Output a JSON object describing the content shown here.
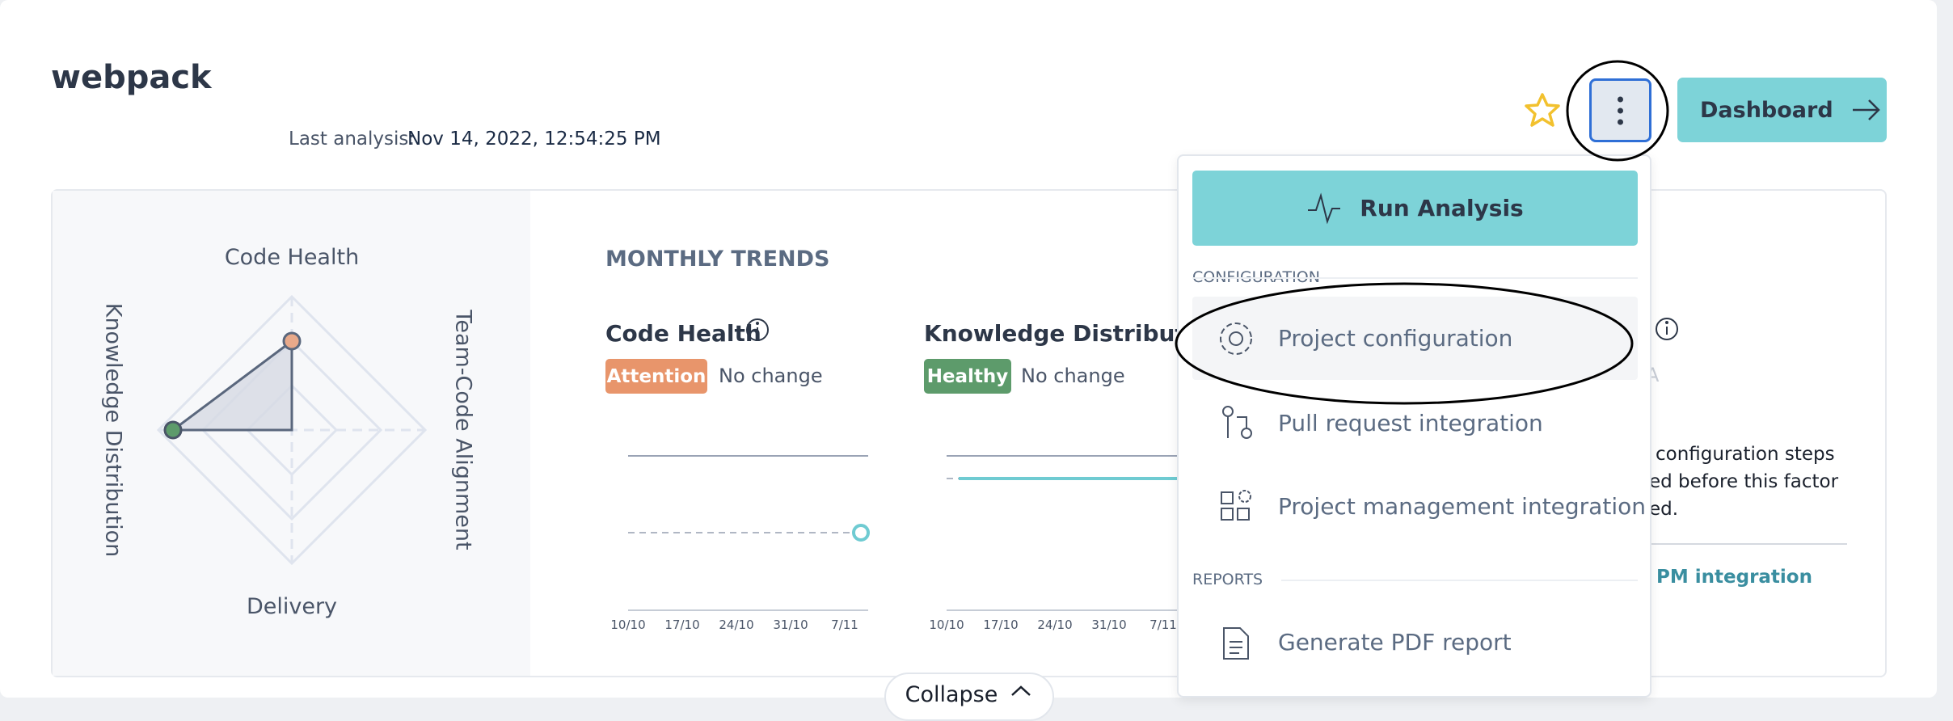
{
  "header": {
    "title": "webpack",
    "last_analysis_label": "Last analysis:",
    "last_analysis_value": "Nov 14, 2022, 12:54:25 PM",
    "dashboard_button": "Dashboard"
  },
  "radar": {
    "top": "Code Health",
    "bottom": "Delivery",
    "left": "Knowledge Distribution",
    "right": "Team-Code Alignment"
  },
  "trends": {
    "title": "MONTHLY TRENDS",
    "cards": [
      {
        "title": "Code Health",
        "badge": "Attention",
        "status": "No change",
        "dates": [
          "10/10",
          "17/10",
          "24/10",
          "31/10",
          "7/11"
        ]
      },
      {
        "title": "Knowledge Distribution",
        "badge": "Healthy",
        "status": "No change",
        "dates": [
          "10/10",
          "17/10",
          "24/10",
          "31/10",
          "7/11"
        ]
      }
    ],
    "hidden_card": {
      "fragment": "A",
      "lines": [
        "configuration steps",
        "ed before this factor",
        "ed."
      ],
      "link": "PM integration"
    }
  },
  "menu": {
    "run_button": "Run Analysis",
    "sections": [
      {
        "heading": "CONFIGURATION",
        "items": [
          "Project configuration",
          "Pull request integration",
          "Project management integration"
        ]
      },
      {
        "heading": "REPORTS",
        "items": [
          "Generate PDF report"
        ]
      }
    ]
  },
  "collapse_button": "Collapse"
}
